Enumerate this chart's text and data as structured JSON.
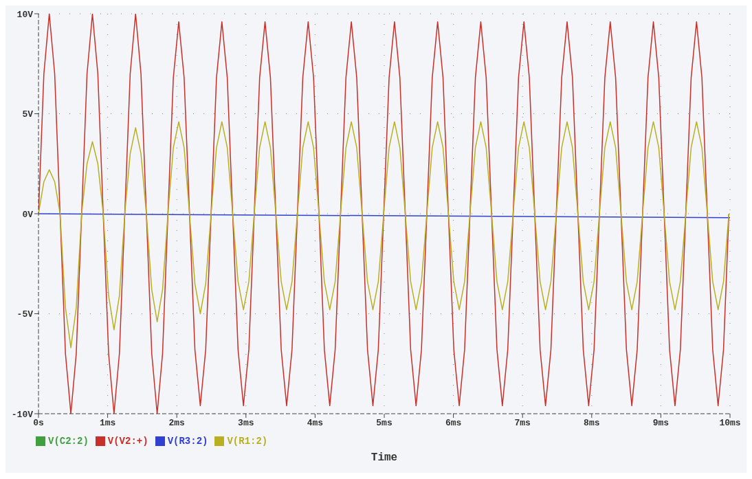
{
  "chart_data": {
    "type": "line",
    "xlabel": "Time",
    "x": [
      0,
      0.078,
      0.156,
      0.234,
      0.312,
      0.39,
      0.468,
      0.546,
      0.624,
      0.702,
      0.78,
      0.858,
      0.936,
      1.014,
      1.092,
      1.17,
      1.248,
      1.326,
      1.404,
      1.482,
      1.56,
      1.638,
      1.716,
      1.794,
      1.872,
      1.95,
      2.028,
      2.106,
      2.184,
      2.262,
      2.34,
      2.418,
      2.496,
      2.574,
      2.652,
      2.73,
      2.808,
      2.886,
      2.964,
      3.042,
      3.12,
      3.198,
      3.276,
      3.354,
      3.432,
      3.51,
      3.588,
      3.666,
      3.744,
      3.822,
      3.9,
      3.978,
      4.056,
      4.134,
      4.212,
      4.29,
      4.368,
      4.446,
      4.524,
      4.602,
      4.68,
      4.758,
      4.836,
      4.914,
      4.992,
      5.07,
      5.148,
      5.226,
      5.304,
      5.382,
      5.46,
      5.538,
      5.616,
      5.694,
      5.772,
      5.85,
      5.928,
      6.006,
      6.084,
      6.162,
      6.24,
      6.318,
      6.396,
      6.474,
      6.552,
      6.63,
      6.708,
      6.786,
      6.864,
      6.942,
      7.02,
      7.098,
      7.176,
      7.254,
      7.332,
      7.41,
      7.488,
      7.566,
      7.644,
      7.722,
      7.8,
      7.878,
      7.956,
      8.034,
      8.112,
      8.19,
      8.268,
      8.346,
      8.424,
      8.502,
      8.58,
      8.658,
      8.736,
      8.814,
      8.892,
      8.97,
      9.048,
      9.126,
      9.204,
      9.282,
      9.36,
      9.438,
      9.516,
      9.594,
      9.672,
      9.75,
      9.828,
      9.906,
      9.984
    ],
    "series": [
      {
        "name": "V(C2:2)",
        "color": "#40a040",
        "values": [
          null,
          null,
          null,
          null,
          null,
          null,
          null,
          null,
          null,
          null,
          null,
          null,
          null,
          null,
          null,
          null,
          null,
          null,
          null,
          null,
          null,
          null,
          null,
          null,
          null,
          null,
          null,
          null,
          null,
          null,
          null,
          null,
          null,
          null,
          null,
          null,
          null,
          null,
          null,
          null,
          null,
          null,
          null,
          null,
          null,
          null,
          null,
          null,
          null,
          null,
          null,
          null,
          null,
          null,
          null,
          null,
          null,
          null,
          null,
          null,
          null,
          null,
          null,
          null,
          null,
          null,
          null,
          null,
          null,
          null,
          null,
          null,
          null,
          null,
          null,
          null,
          null,
          null,
          null,
          null,
          null,
          null,
          null,
          null,
          null,
          null,
          null,
          null,
          null,
          null,
          null,
          null,
          null,
          null,
          null,
          null,
          null,
          null,
          null,
          null,
          null,
          null,
          null,
          null,
          null,
          null,
          null,
          null,
          null,
          null,
          null,
          null,
          null,
          null,
          null,
          null,
          null,
          null,
          null,
          null,
          null,
          null,
          null,
          null,
          null,
          null,
          null,
          null,
          null
        ]
      },
      {
        "name": "V(V2:+)",
        "color": "#c8302a",
        "values": [
          0,
          7,
          10,
          7,
          0,
          -7,
          -10,
          -7,
          0,
          7,
          10,
          7,
          0,
          -7,
          -10,
          -7,
          0,
          7,
          10,
          7,
          0,
          -7,
          -10,
          -7,
          0,
          6.8,
          9.6,
          6.8,
          0,
          -6.8,
          -9.6,
          -6.8,
          0,
          6.8,
          9.6,
          6.8,
          0,
          -6.8,
          -9.6,
          -6.8,
          0,
          6.8,
          9.6,
          6.8,
          0,
          -6.8,
          -9.6,
          -6.8,
          0,
          6.8,
          9.6,
          6.8,
          0,
          -6.8,
          -9.6,
          -6.8,
          0,
          6.8,
          9.6,
          6.8,
          0,
          -6.8,
          -9.6,
          -6.8,
          0,
          6.8,
          9.6,
          6.8,
          0,
          -6.8,
          -9.6,
          -6.8,
          0,
          6.8,
          9.6,
          6.8,
          0,
          -6.8,
          -9.6,
          -6.8,
          0,
          6.8,
          9.6,
          6.8,
          0,
          -6.8,
          -9.6,
          -6.8,
          0,
          6.8,
          9.6,
          6.8,
          0,
          -6.8,
          -9.6,
          -6.8,
          0,
          6.8,
          9.6,
          6.8,
          0,
          -6.8,
          -9.6,
          -6.8,
          0,
          6.8,
          9.6,
          6.8,
          0,
          -6.8,
          -9.6,
          -6.8,
          0,
          6.8,
          9.6,
          6.8,
          0,
          -6.8,
          -9.6,
          -6.8,
          0,
          6.8,
          9.6,
          6.8,
          0,
          -6.8,
          -9.6,
          -6.8,
          0
        ]
      },
      {
        "name": "V(R3:2)",
        "color": "#3040d0",
        "x": [
          0,
          10
        ],
        "values": [
          0,
          -0.2
        ]
      },
      {
        "name": "V(R1:2)",
        "color": "#b8b020",
        "values": [
          0,
          1.6,
          2.2,
          1.6,
          0,
          -4.7,
          -6.7,
          -4.7,
          0,
          2.5,
          3.6,
          2.5,
          0,
          -4.1,
          -5.8,
          -4.1,
          0,
          3,
          4.3,
          3,
          0,
          -3.8,
          -5.4,
          -3.8,
          0,
          3.3,
          4.6,
          3.3,
          0,
          -3.5,
          -5,
          -3.5,
          0,
          3.3,
          4.6,
          3.3,
          0,
          -3.4,
          -4.8,
          -3.4,
          0,
          3.3,
          4.6,
          3.3,
          0,
          -3.4,
          -4.8,
          -3.4,
          0,
          3.3,
          4.6,
          3.3,
          0,
          -3.4,
          -4.8,
          -3.4,
          0,
          3.3,
          4.6,
          3.3,
          0,
          -3.4,
          -4.8,
          -3.4,
          0,
          3.3,
          4.6,
          3.3,
          0,
          -3.4,
          -4.8,
          -3.4,
          0,
          3.3,
          4.6,
          3.3,
          0,
          -3.4,
          -4.8,
          -3.4,
          0,
          3.3,
          4.6,
          3.3,
          0,
          -3.4,
          -4.8,
          -3.4,
          0,
          3.3,
          4.6,
          3.3,
          0,
          -3.4,
          -4.8,
          -3.4,
          0,
          3.3,
          4.6,
          3.3,
          0,
          -3.4,
          -4.8,
          -3.4,
          0,
          3.3,
          4.6,
          3.3,
          0,
          -3.4,
          -4.8,
          -3.4,
          0,
          3.3,
          4.6,
          3.3,
          0,
          -3.4,
          -4.8,
          -3.4,
          0,
          3.3,
          4.6,
          3.3,
          0,
          -3.4,
          -4.8,
          -3.4,
          0
        ]
      }
    ],
    "xlim": [
      0,
      10
    ],
    "xticks": [
      {
        "value": 0,
        "label": "0s"
      },
      {
        "value": 1,
        "label": "1ms"
      },
      {
        "value": 2,
        "label": "2ms"
      },
      {
        "value": 3,
        "label": "3ms"
      },
      {
        "value": 4,
        "label": "4ms"
      },
      {
        "value": 5,
        "label": "5ms"
      },
      {
        "value": 6,
        "label": "6ms"
      },
      {
        "value": 7,
        "label": "7ms"
      },
      {
        "value": 8,
        "label": "8ms"
      },
      {
        "value": 9,
        "label": "9ms"
      },
      {
        "value": 10,
        "label": "10ms"
      }
    ],
    "ylim": [
      -10,
      10
    ],
    "yticks": [
      {
        "value": -10,
        "label": "-10V"
      },
      {
        "value": -5,
        "label": "-5V"
      },
      {
        "value": 0,
        "label": "0V"
      },
      {
        "value": 5,
        "label": "5V"
      },
      {
        "value": 10,
        "label": "10V"
      }
    ],
    "grid": true,
    "legend": "bottom",
    "marker": "none",
    "line_style": "solid"
  }
}
